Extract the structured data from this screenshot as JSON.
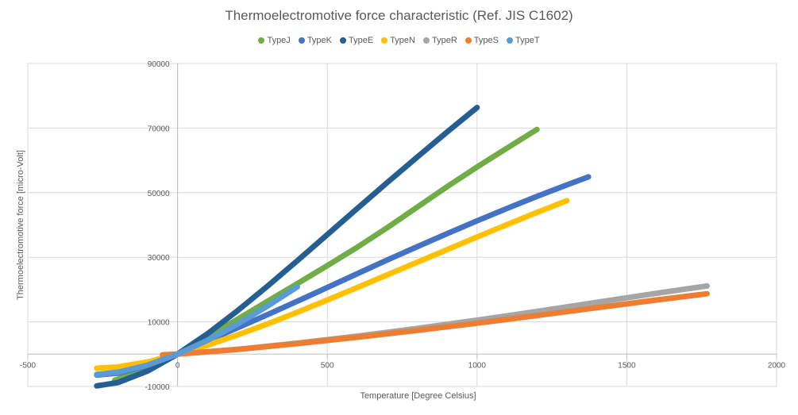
{
  "chart_data": {
    "type": "line",
    "title": "Thermoelectromotive force characteristic (Ref. JIS C1602)",
    "xlabel": "Temperature [Degree Celsius]",
    "ylabel": "Thermoelectromotive force [micro-Volt]",
    "xlim": [
      -500,
      2000
    ],
    "ylim": [
      -10000,
      90000
    ],
    "xticks": [
      -500,
      0,
      500,
      1000,
      1500,
      2000
    ],
    "xtick_labels": [
      "-500",
      "0",
      "500",
      "1000",
      "1500",
      "2000"
    ],
    "yticks": [
      -10000,
      10000,
      30000,
      50000,
      70000,
      90000
    ],
    "ytick_labels": [
      "-10000",
      "10000",
      "30000",
      "50000",
      "70000",
      "90000"
    ],
    "grid": true,
    "legend_position": "top",
    "series": [
      {
        "name": "TypeJ",
        "color": "#70ad47",
        "x": [
          -210,
          -100,
          0,
          100,
          200,
          300,
          400,
          500,
          600,
          700,
          800,
          900,
          1000,
          1100,
          1200
        ],
        "y": [
          -8095,
          -4633,
          0,
          5269,
          10779,
          16327,
          21848,
          27393,
          33102,
          39132,
          45494,
          51877,
          57953,
          63792,
          69553
        ]
      },
      {
        "name": "TypeK",
        "color": "#4472c4",
        "x": [
          -270,
          -200,
          -100,
          0,
          100,
          200,
          300,
          400,
          500,
          600,
          700,
          800,
          900,
          1000,
          1100,
          1200,
          1300,
          1372
        ],
        "y": [
          -6458,
          -5891,
          -3554,
          0,
          4096,
          8138,
          12209,
          16397,
          20644,
          24905,
          29129,
          33275,
          37326,
          41276,
          45119,
          48838,
          52410,
          54886
        ]
      },
      {
        "name": "TypeE",
        "color": "#255e91",
        "x": [
          -270,
          -200,
          -100,
          0,
          100,
          200,
          300,
          400,
          500,
          600,
          700,
          800,
          900,
          1000
        ],
        "y": [
          -9835,
          -8825,
          -5237,
          0,
          6319,
          13421,
          21036,
          28946,
          37005,
          45093,
          53112,
          61017,
          68787,
          76373
        ]
      },
      {
        "name": "TypeN",
        "color": "#ffc000",
        "x": [
          -270,
          -200,
          -100,
          0,
          100,
          200,
          300,
          400,
          500,
          600,
          700,
          800,
          900,
          1000,
          1100,
          1200,
          1300
        ],
        "y": [
          -4345,
          -3990,
          -2407,
          0,
          2774,
          5913,
          9341,
          12974,
          16748,
          20613,
          24527,
          28455,
          32371,
          36256,
          40087,
          43846,
          47513
        ]
      },
      {
        "name": "TypeR",
        "color": "#a5a5a5",
        "x": [
          -50,
          0,
          200,
          400,
          600,
          800,
          1000,
          1200,
          1400,
          1600,
          1768
        ],
        "y": [
          -226,
          0,
          1469,
          3408,
          5583,
          7950,
          10506,
          13228,
          16040,
          18849,
          21101
        ]
      },
      {
        "name": "TypeS",
        "color": "#ed7d31",
        "x": [
          -50,
          0,
          200,
          400,
          600,
          800,
          1000,
          1200,
          1400,
          1600,
          1768
        ],
        "y": [
          -236,
          0,
          1441,
          3259,
          5239,
          7345,
          9587,
          11951,
          14373,
          16777,
          18693
        ]
      },
      {
        "name": "TypeT",
        "color": "#5b9bd5",
        "x": [
          -270,
          -200,
          -100,
          0,
          100,
          200,
          300,
          400
        ],
        "y": [
          -6258,
          -5603,
          -3379,
          0,
          4279,
          9288,
          14862,
          20872
        ]
      }
    ]
  }
}
